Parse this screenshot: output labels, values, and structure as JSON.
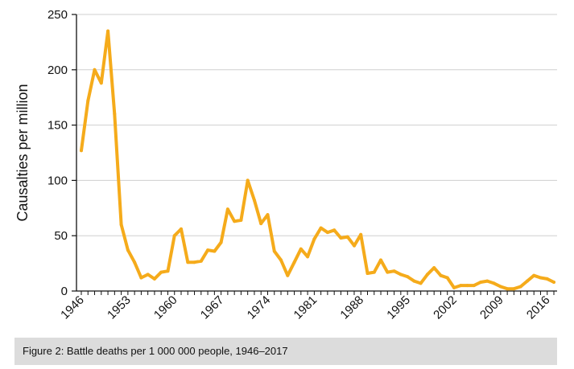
{
  "chart_data": {
    "type": "line",
    "title": "",
    "xlabel": "",
    "ylabel": "Causalties per million",
    "xlim": [
      1946,
      2017
    ],
    "ylim": [
      0,
      250
    ],
    "yticks": [
      0,
      50,
      100,
      150,
      200,
      250
    ],
    "xticks": [
      1946,
      1953,
      1960,
      1967,
      1974,
      1981,
      1988,
      1995,
      2002,
      2009,
      2016
    ],
    "grid": true,
    "legend": "none",
    "line_color": "#f5ab1b",
    "x": [
      1946,
      1947,
      1948,
      1949,
      1950,
      1951,
      1952,
      1953,
      1954,
      1955,
      1956,
      1957,
      1958,
      1959,
      1960,
      1961,
      1962,
      1963,
      1964,
      1965,
      1966,
      1967,
      1968,
      1969,
      1970,
      1971,
      1972,
      1973,
      1974,
      1975,
      1976,
      1977,
      1978,
      1979,
      1980,
      1981,
      1982,
      1983,
      1984,
      1985,
      1986,
      1987,
      1988,
      1989,
      1990,
      1991,
      1992,
      1993,
      1994,
      1995,
      1996,
      1997,
      1998,
      1999,
      2000,
      2001,
      2002,
      2003,
      2004,
      2005,
      2006,
      2007,
      2008,
      2009,
      2010,
      2011,
      2012,
      2013,
      2014,
      2015,
      2016,
      2017
    ],
    "series": [
      {
        "values": [
          127,
          172,
          200,
          188,
          235,
          160,
          60,
          37,
          26,
          12,
          15,
          11,
          17,
          18,
          50,
          56,
          26,
          26,
          27,
          37,
          36,
          44,
          74,
          63,
          64,
          100,
          82,
          61,
          69,
          36,
          28,
          14,
          26,
          38,
          31,
          47,
          57,
          53,
          55,
          48,
          49,
          41,
          51,
          16,
          17,
          28,
          17,
          18,
          15,
          13,
          9,
          7,
          15,
          21,
          14,
          12,
          3,
          5,
          5,
          5,
          8,
          9,
          7,
          4,
          2,
          2,
          4,
          9,
          14,
          12,
          11,
          8
        ]
      }
    ]
  },
  "caption": "Figure 2: Battle deaths per 1 000 000 people, 1946–2017"
}
